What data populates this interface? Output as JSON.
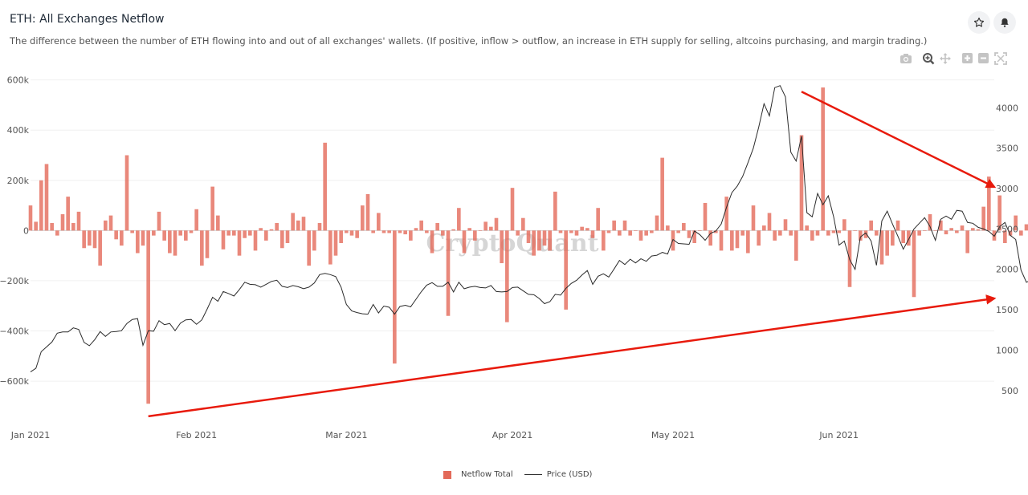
{
  "header": {
    "title": "ETH: All Exchanges Netflow",
    "subtitle": "The difference between the number of ETH flowing into and out of all exchanges' wallets. (If positive, inflow > outflow, an increase in ETH supply for selling, altcoins purchasing, and margin trading.)"
  },
  "watermark": "CryptoQuant",
  "toolbar": [
    "camera-icon",
    "zoom-icon",
    "pan-icon",
    "zoom-in-icon",
    "zoom-out-icon",
    "autoscale-icon"
  ],
  "chart_data": {
    "type": "bar",
    "x_range": [
      "2021-01-01",
      "2021-06-30"
    ],
    "x_ticks": [
      "Jan 2021",
      "Feb 2021",
      "Mar 2021",
      "Apr 2021",
      "May 2021",
      "Jun 2021"
    ],
    "y_left": {
      "range": [
        -750000,
        650000
      ],
      "ticks": [
        600000,
        400000,
        200000,
        0,
        -200000,
        -400000,
        -600000
      ],
      "tick_labels": [
        "600k",
        "400k",
        "200k",
        "0",
        "−200k",
        "−400k",
        "−600k"
      ]
    },
    "y_right": {
      "range": [
        150,
        4500
      ],
      "ticks": [
        4000,
        3500,
        3000,
        2500,
        2000,
        1500,
        1000,
        500
      ],
      "tick_labels": [
        "4000",
        "3500",
        "3000",
        "2500",
        "2000",
        "1500",
        "1000",
        "500"
      ]
    },
    "legend_position": "bottom-center",
    "colors": {
      "netflow": "#e36a5a",
      "price": "#2b2b2b",
      "arrow": "#e81a0c"
    },
    "series": [
      {
        "name": "Netflow Total",
        "kind": "bar",
        "axis": "left",
        "values": [
          100000,
          35000,
          200000,
          265000,
          30000,
          -20000,
          65000,
          135000,
          30000,
          75000,
          -70000,
          -60000,
          -70000,
          -140000,
          40000,
          60000,
          -35000,
          -60000,
          300000,
          -10000,
          -90000,
          -60000,
          -690000,
          -20000,
          75000,
          -40000,
          -90000,
          -100000,
          -20000,
          -40000,
          -10000,
          85000,
          -140000,
          -110000,
          175000,
          60000,
          -75000,
          -20000,
          -20000,
          -100000,
          -30000,
          -20000,
          -80000,
          10000,
          -40000,
          5000,
          30000,
          -70000,
          -50000,
          70000,
          40000,
          55000,
          -140000,
          -80000,
          30000,
          350000,
          -135000,
          -100000,
          -50000,
          -10000,
          -20000,
          -30000,
          100000,
          145000,
          -10000,
          70000,
          -10000,
          -10000,
          -530000,
          -10000,
          -15000,
          -40000,
          10000,
          40000,
          -10000,
          -90000,
          30000,
          -20000,
          -340000,
          5000,
          90000,
          -90000,
          10000,
          -40000,
          0,
          35000,
          15000,
          50000,
          -130000,
          -365000,
          170000,
          -20000,
          50000,
          -50000,
          -100000,
          -80000,
          -60000,
          -80000,
          155000,
          -10000,
          -315000,
          -10000,
          -20000,
          15000,
          10000,
          -30000,
          90000,
          -80000,
          -10000,
          40000,
          -20000,
          40000,
          -20000,
          0,
          -40000,
          -20000,
          -10000,
          60000,
          290000,
          20000,
          -80000,
          -10000,
          30000,
          -30000,
          -50000,
          0,
          110000,
          -60000,
          -10000,
          -80000,
          135000,
          -80000,
          -70000,
          -20000,
          -90000,
          100000,
          -60000,
          20000,
          70000,
          -40000,
          -20000,
          45000,
          -20000,
          -120000,
          380000,
          20000,
          -40000,
          -20000,
          570000,
          -20000,
          -10000,
          -10000,
          45000,
          -225000,
          0,
          -40000,
          -30000,
          40000,
          -20000,
          -135000,
          -100000,
          -60000,
          40000,
          -50000,
          -60000,
          -265000,
          -20000,
          0,
          65000,
          0,
          40000,
          -15000,
          10000,
          -10000,
          20000,
          -90000,
          10000,
          5000,
          95000,
          215000,
          -40000,
          140000,
          -50000,
          -20000,
          60000,
          -20000,
          25000
        ]
      },
      {
        "name": "Price (USD)",
        "kind": "line",
        "axis": "right",
        "values": [
          730,
          775,
          980,
          1040,
          1100,
          1210,
          1225,
          1225,
          1275,
          1255,
          1095,
          1055,
          1130,
          1230,
          1170,
          1225,
          1230,
          1240,
          1330,
          1380,
          1390,
          1060,
          1240,
          1235,
          1365,
          1315,
          1330,
          1240,
          1335,
          1375,
          1380,
          1320,
          1375,
          1510,
          1655,
          1605,
          1725,
          1700,
          1670,
          1750,
          1840,
          1815,
          1810,
          1780,
          1815,
          1850,
          1865,
          1790,
          1775,
          1800,
          1785,
          1760,
          1780,
          1830,
          1935,
          1950,
          1935,
          1910,
          1780,
          1565,
          1485,
          1465,
          1450,
          1445,
          1565,
          1460,
          1545,
          1530,
          1445,
          1540,
          1555,
          1535,
          1630,
          1725,
          1805,
          1835,
          1790,
          1790,
          1840,
          1720,
          1840,
          1760,
          1780,
          1790,
          1775,
          1770,
          1800,
          1725,
          1720,
          1725,
          1775,
          1780,
          1735,
          1690,
          1685,
          1640,
          1575,
          1600,
          1690,
          1680,
          1765,
          1825,
          1865,
          1930,
          1985,
          1815,
          1915,
          1945,
          1905,
          2005,
          2110,
          2060,
          2125,
          2080,
          2130,
          2100,
          2165,
          2175,
          2210,
          2190,
          2370,
          2320,
          2315,
          2310,
          2475,
          2430,
          2360,
          2445,
          2475,
          2560,
          2770,
          2950,
          3030,
          3150,
          3320,
          3500,
          3760,
          4050,
          3900,
          4250,
          4275,
          4135,
          3450,
          3340,
          3650,
          2700,
          2650,
          2940,
          2800,
          2910,
          2650,
          2300,
          2350,
          2120,
          2000,
          2400,
          2450,
          2350,
          2050,
          2600,
          2720,
          2560,
          2410,
          2250,
          2370,
          2500,
          2570,
          2640,
          2530,
          2360,
          2620,
          2660,
          2620,
          2730,
          2720,
          2580,
          2570,
          2520,
          2500,
          2470,
          2410,
          2530,
          2580,
          2420,
          2370,
          1990,
          1840,
          1870,
          1810,
          2000,
          1920,
          1790,
          1800,
          1970,
          2080
        ]
      }
    ],
    "annotations": [
      {
        "type": "arrow",
        "from": [
          "2021-01-23",
          -740000
        ],
        "to": [
          "2021-06-30",
          1640
        ]
      },
      {
        "type": "arrow",
        "from": [
          "2021-05-25",
          4200
        ],
        "to": [
          "2021-06-30",
          3020
        ]
      }
    ]
  }
}
